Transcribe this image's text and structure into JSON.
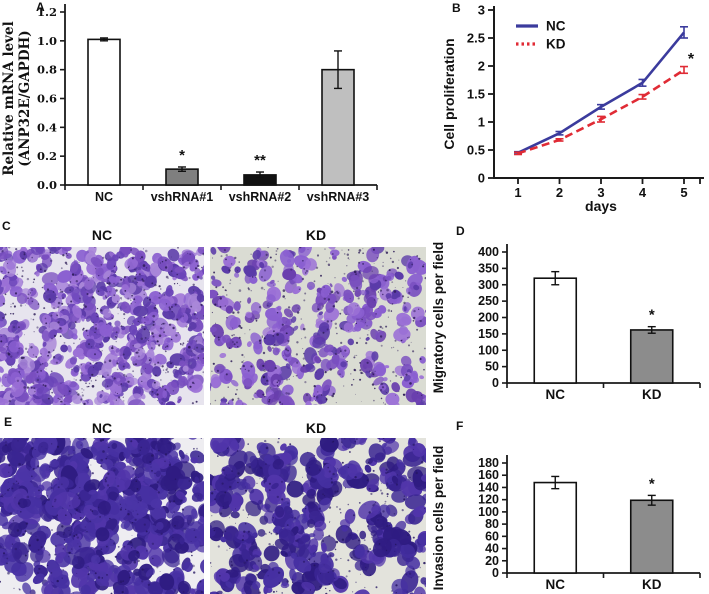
{
  "panels": {
    "A": {
      "letter": "A"
    },
    "B": {
      "letter": "B"
    },
    "C": {
      "letter": "C"
    },
    "D": {
      "letter": "D"
    },
    "E": {
      "letter": "E"
    },
    "F": {
      "letter": "F"
    }
  },
  "chart_data": [
    {
      "panel": "A",
      "type": "bar",
      "categories": [
        "NC",
        "vshRNA#1",
        "vshRNA#2",
        "vshRNA#3"
      ],
      "values": [
        1.01,
        0.11,
        0.07,
        0.8
      ],
      "errors": [
        0.01,
        0.015,
        0.02,
        0.13
      ],
      "bar_colors": [
        "#ffffff",
        "#7f7f7f",
        "#121212",
        "#bfbfbf"
      ],
      "significance": [
        "",
        "*",
        "**",
        ""
      ],
      "ylabel_lines": [
        "Relative mRNA level",
        "(ANP32E/GAPDH)"
      ],
      "ylim": [
        0,
        1.2
      ],
      "yticks": [
        "0.0",
        "0.2",
        "0.4",
        "0.6",
        "0.8",
        "1.0",
        "1.2"
      ]
    },
    {
      "panel": "B",
      "type": "line",
      "x": [
        1,
        2,
        3,
        4,
        5
      ],
      "xticks": [
        "1",
        "2",
        "3",
        "4",
        "5"
      ],
      "xlabel": "days",
      "ylabel": "Cell proliferation",
      "ylim": [
        0,
        3
      ],
      "yticks": [
        "0",
        "0.5",
        "1",
        "1.5",
        "2",
        "2.5",
        "3"
      ],
      "series": [
        {
          "name": "NC",
          "color": "#3b3b9d",
          "style": "solid",
          "values": [
            0.45,
            0.8,
            1.27,
            1.7,
            2.6
          ],
          "errors": [
            0.02,
            0.03,
            0.04,
            0.06,
            0.1
          ]
        },
        {
          "name": "KD",
          "color": "#e02b35",
          "style": "dashed",
          "values": [
            0.44,
            0.68,
            1.05,
            1.45,
            1.93
          ],
          "errors": [
            0.02,
            0.02,
            0.05,
            0.04,
            0.06
          ]
        }
      ],
      "legend_position": "top-left",
      "annotation": "*"
    },
    {
      "panel": "D",
      "type": "bar",
      "categories": [
        "NC",
        "KD"
      ],
      "values": [
        320,
        162
      ],
      "errors": [
        20,
        10
      ],
      "bar_colors": [
        "#ffffff",
        "#8c8c8c"
      ],
      "significance": [
        "",
        "*"
      ],
      "ylabel": "Migratory cells per field",
      "ylim": [
        0,
        400
      ],
      "yticks": [
        "0",
        "50",
        "100",
        "150",
        "200",
        "250",
        "300",
        "350",
        "400"
      ]
    },
    {
      "panel": "F",
      "type": "bar",
      "categories": [
        "NC",
        "KD"
      ],
      "values": [
        148,
        119
      ],
      "errors": [
        10,
        8
      ],
      "bar_colors": [
        "#ffffff",
        "#8c8c8c"
      ],
      "significance": [
        "",
        "*"
      ],
      "ylabel": "Invasion cells per field",
      "ylim": [
        0,
        180
      ],
      "yticks": [
        "0",
        "20",
        "40",
        "60",
        "80",
        "100",
        "120",
        "140",
        "160",
        "180"
      ]
    }
  ],
  "micrographs": {
    "C": {
      "stain": "crystal-violet",
      "images": {
        "nc": {
          "label": "NC",
          "coverage": "high",
          "bg": "#e7e4ee",
          "speckle": "#2b1a55",
          "palette": [
            "#7a4fc0",
            "#8a5fd0",
            "#9b70d6",
            "#5a3aa8",
            "#6a44b8",
            "#a987d9"
          ],
          "seed": 7,
          "clusters": 340,
          "rmin": 2,
          "rmax": 7,
          "sub": 4,
          "speckles": 480
        },
        "kd": {
          "label": "KD",
          "coverage": "medium",
          "bg": "#dadcd3",
          "speckle": "#2b1a55",
          "palette": [
            "#7a4fc0",
            "#8a5fd0",
            "#6a3fae",
            "#9b70d6",
            "#5a3aa8"
          ],
          "seed": 19,
          "clusters": 185,
          "rmin": 2,
          "rmax": 7,
          "sub": 3,
          "speckles": 400
        }
      }
    },
    "E": {
      "stain": "crystal-violet",
      "images": {
        "nc": {
          "label": "NC",
          "coverage": "high",
          "bg": "#eeedf1",
          "speckle": "#241560",
          "palette": [
            "#4630a2",
            "#3a2592",
            "#5135aa",
            "#2f1c82",
            "#4b34a6"
          ],
          "seed": 11,
          "clusters": 250,
          "rmin": 3,
          "rmax": 9,
          "sub": 5,
          "speckles": 260
        },
        "kd": {
          "label": "KD",
          "coverage": "medium-high",
          "bg": "#e3e3dc",
          "speckle": "#241560",
          "palette": [
            "#4630a2",
            "#3a2592",
            "#5135aa",
            "#2f1c82"
          ],
          "seed": 29,
          "clusters": 170,
          "rmin": 3,
          "rmax": 9,
          "sub": 4,
          "speckles": 260
        }
      }
    }
  }
}
